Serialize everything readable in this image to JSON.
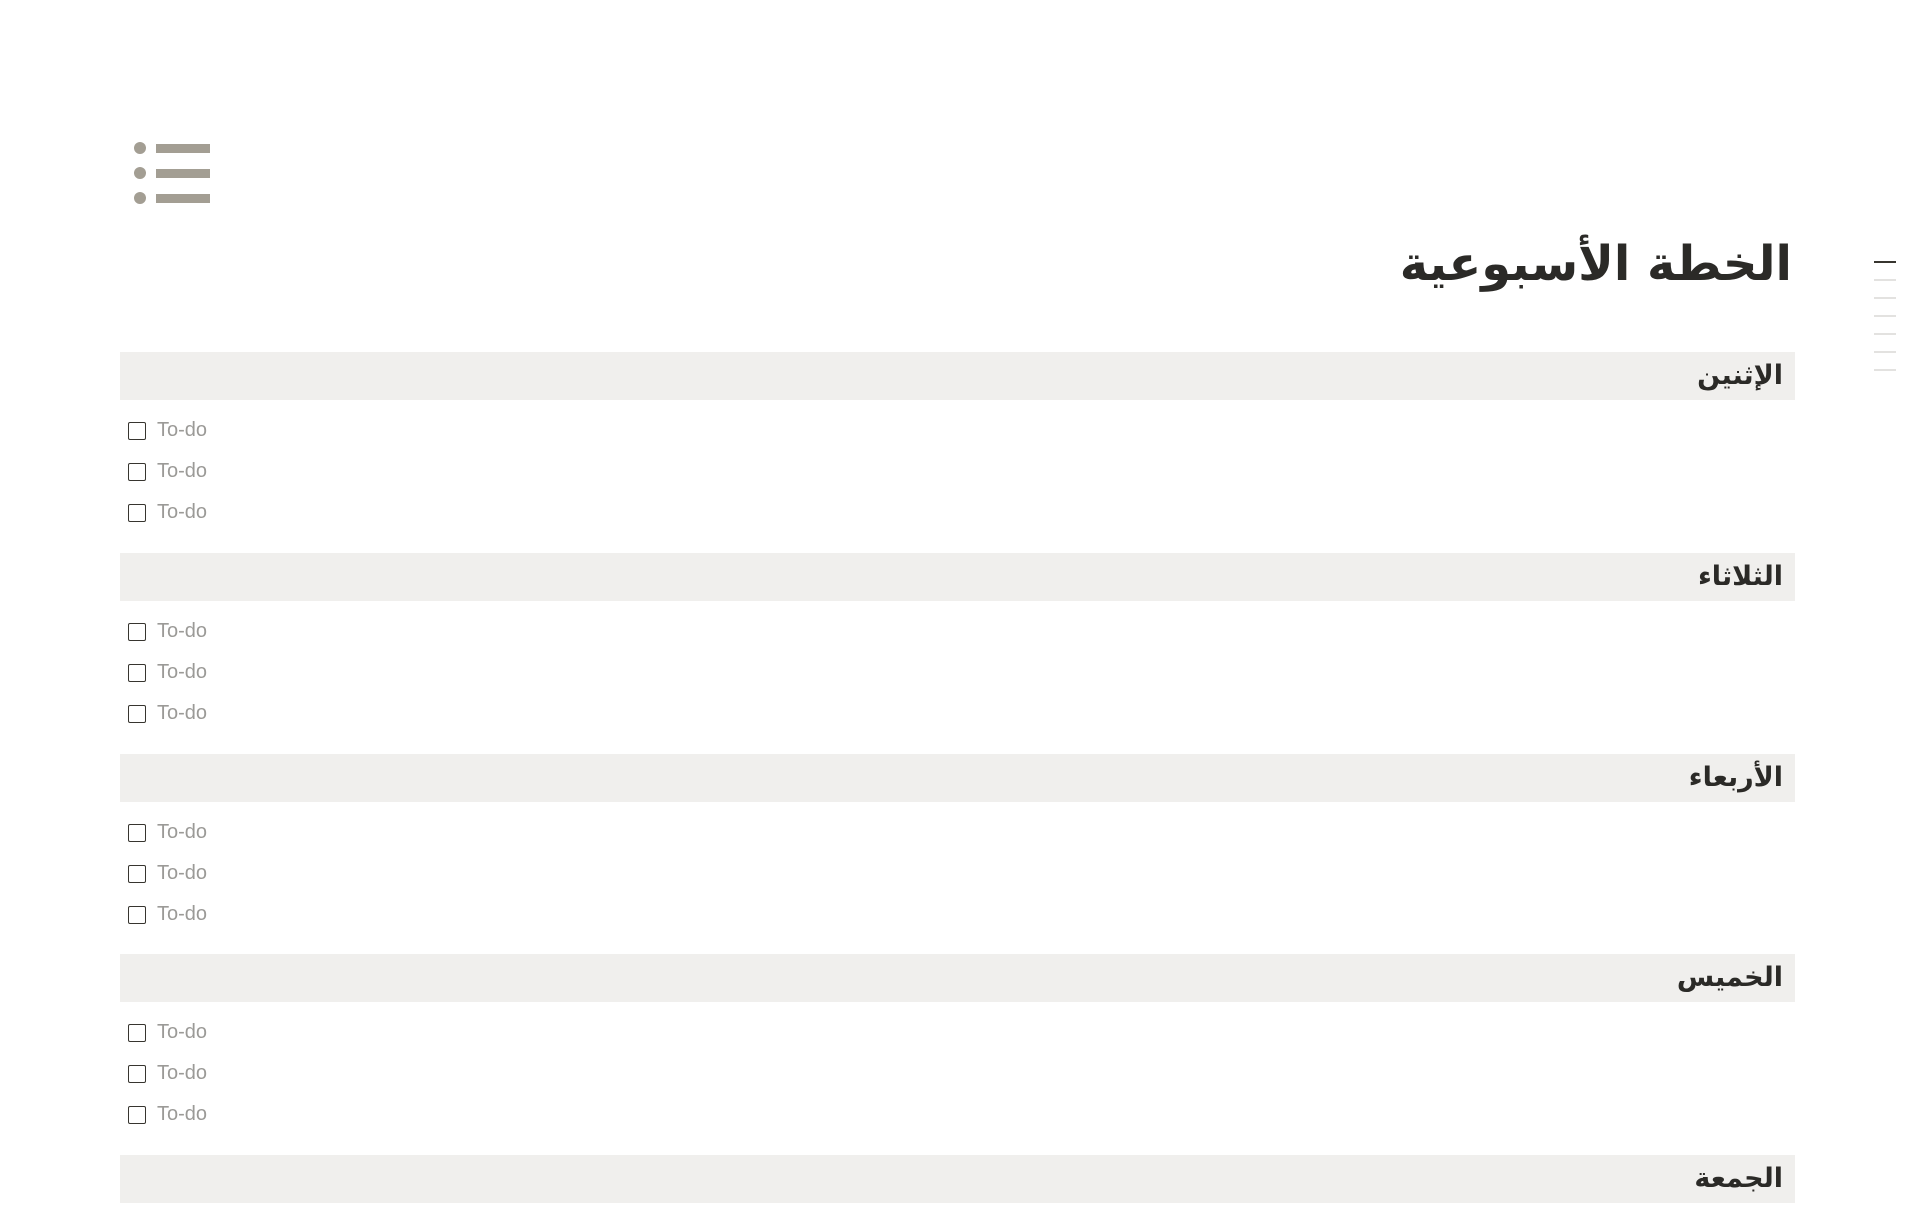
{
  "page": {
    "icon": "bulleted-list-icon",
    "title": "الخطة الأسبوعية"
  },
  "sections": [
    {
      "day": "الإثنين",
      "todos": [
        "To-do",
        "To-do",
        "To-do"
      ]
    },
    {
      "day": "الثلاثاء",
      "todos": [
        "To-do",
        "To-do",
        "To-do"
      ]
    },
    {
      "day": "الأربعاء",
      "todos": [
        "To-do",
        "To-do",
        "To-do"
      ]
    },
    {
      "day": "الخميس",
      "todos": [
        "To-do",
        "To-do",
        "To-do"
      ]
    },
    {
      "day": "الجمعة",
      "todos": []
    }
  ],
  "toc": {
    "items": 7,
    "active_index": 0
  },
  "colors": {
    "icon": "#a39e93",
    "heading_bg": "#f0efed",
    "placeholder": "#9b9a97",
    "text": "#2b2a27"
  }
}
